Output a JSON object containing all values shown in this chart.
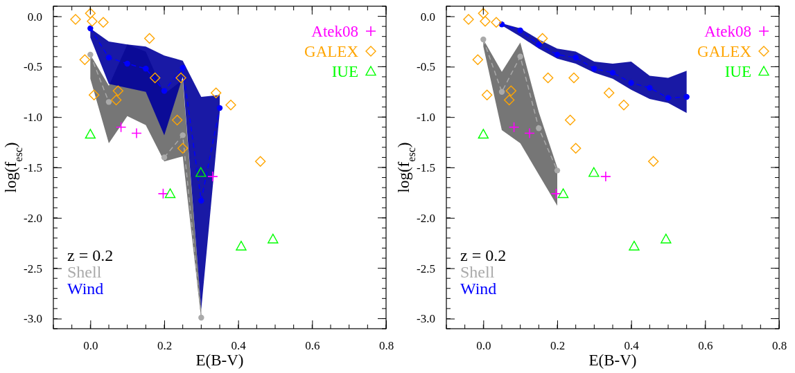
{
  "chart_data": [
    {
      "type": "scatter",
      "xlabel": "E(B-V)",
      "ylabel": "log(f$_{esc}$)",
      "xlim": [
        -0.1,
        0.8
      ],
      "ylim": [
        -3.1,
        0.1
      ],
      "xticks": [
        {
          "value": 0,
          "label": "0.0"
        },
        {
          "value": 0.2,
          "label": "0.2"
        },
        {
          "value": 0.4,
          "label": "0.4"
        },
        {
          "value": 0.6,
          "label": "0.6"
        },
        {
          "value": 0.8,
          "label": "0.8"
        }
      ],
      "yticks": [
        {
          "value": 0,
          "label": "0.0"
        },
        {
          "value": -0.5,
          "label": "-0.5"
        },
        {
          "value": -1,
          "label": "-1.0"
        },
        {
          "value": -1.5,
          "label": "-1.5"
        },
        {
          "value": -2,
          "label": "-2.0"
        },
        {
          "value": -2.5,
          "label": "-2.5"
        },
        {
          "value": -3,
          "label": "-3.0"
        }
      ],
      "legend": "top right",
      "annotations": [
        "z = 0.2"
      ],
      "series": [
        {
          "name": "Shell",
          "type": "line",
          "color": "#aaaaaa",
          "marker": "circle",
          "line_style": "dashed",
          "x": [
            0,
            0.05,
            0.1,
            0.15,
            0.2,
            0.25,
            0.3
          ],
          "values": [
            -0.38,
            -0.85,
            null,
            null,
            -1.4,
            -1.18,
            -2.99
          ],
          "upper": [
            -0.38,
            -0.69,
            -0.28,
            -0.35,
            -0.77,
            -0.63,
            -2.9
          ],
          "lower": [
            -0.62,
            -1.26,
            -0.99,
            -1.08,
            -1.44,
            -1.39,
            -3.0
          ]
        },
        {
          "name": "Wind",
          "type": "line",
          "color": "#0000ff",
          "marker": "circle",
          "line_style": "dashed",
          "x": [
            0,
            0.05,
            0.1,
            0.15,
            0.2,
            0.25,
            0.3,
            0.35
          ],
          "values": [
            -0.12,
            -0.41,
            -0.47,
            -0.52,
            -0.74,
            -0.51,
            -1.83,
            -0.91
          ],
          "upper": [
            -0.12,
            -0.25,
            -0.28,
            -0.3,
            -0.39,
            -0.44,
            -0.8,
            -0.78
          ],
          "lower": [
            -0.21,
            -0.67,
            -0.71,
            -0.75,
            -1.18,
            -0.6,
            -2.91,
            -0.95
          ]
        },
        {
          "name": "Atek08",
          "type": "scatter",
          "color": "#ff00ff",
          "marker": "cross",
          "x": [
            0.083,
            0.125,
            0.331,
            0.197
          ],
          "values": [
            -1.1,
            -1.16,
            -1.59,
            -1.76
          ]
        },
        {
          "name": "GALEX",
          "type": "scatter",
          "color": "#ffa500",
          "marker": "diamond",
          "x": [
            -0.04,
            0.0,
            0.005,
            0.035,
            0.16,
            -0.015,
            0.01,
            0.075,
            0.07,
            0.175,
            0.245,
            0.34,
            0.38,
            0.235,
            0.25,
            0.46
          ],
          "values": [
            -0.03,
            0.03,
            -0.05,
            -0.06,
            -0.22,
            -0.43,
            -0.78,
            -0.74,
            -0.83,
            -0.61,
            -0.61,
            -0.76,
            -0.88,
            -1.03,
            -1.31,
            -1.44
          ]
        },
        {
          "name": "IUE",
          "type": "scatter",
          "color": "#00ff00",
          "marker": "triangle",
          "x": [
            0.0,
            0.299,
            0.216,
            0.408,
            0.494
          ],
          "values": [
            -1.17,
            -1.55,
            -1.76,
            -2.28,
            -2.21
          ]
        }
      ]
    },
    {
      "type": "scatter",
      "xlabel": "E(B-V)",
      "ylabel": "log(f$_{esc}$)",
      "xlim": [
        -0.1,
        0.8
      ],
      "ylim": [
        -3.1,
        0.1
      ],
      "xticks": [
        {
          "value": 0,
          "label": "0.0"
        },
        {
          "value": 0.2,
          "label": "0.2"
        },
        {
          "value": 0.4,
          "label": "0.4"
        },
        {
          "value": 0.6,
          "label": "0.6"
        },
        {
          "value": 0.8,
          "label": "0.8"
        }
      ],
      "yticks": [
        {
          "value": 0,
          "label": "0.0"
        },
        {
          "value": -0.5,
          "label": "-0.5"
        },
        {
          "value": -1,
          "label": "-1.0"
        },
        {
          "value": -1.5,
          "label": "-1.5"
        },
        {
          "value": -2,
          "label": "-2.0"
        },
        {
          "value": -2.5,
          "label": "-2.5"
        },
        {
          "value": -3,
          "label": "-3.0"
        }
      ],
      "legend": "top right",
      "annotations": [
        "z = 0.2"
      ],
      "series": [
        {
          "name": "Shell",
          "type": "line",
          "color": "#aaaaaa",
          "marker": "circle",
          "line_style": "dashed",
          "x": [
            0,
            0.05,
            0.1,
            0.15,
            0.2
          ],
          "values": [
            -0.23,
            -0.75,
            -0.4,
            -1.11,
            -1.53
          ],
          "upper": [
            -0.23,
            -0.55,
            -0.26,
            -0.95,
            -1.5
          ],
          "lower": [
            -0.3,
            -1.13,
            -1.26,
            -1.57,
            -1.88
          ]
        },
        {
          "name": "Wind",
          "type": "line",
          "color": "#0000ff",
          "marker": "circle",
          "line_style": "dashed",
          "x": [
            0.05,
            0.1,
            0.15,
            0.2,
            0.25,
            0.3,
            0.35,
            0.4,
            0.45,
            0.5,
            0.55
          ],
          "values": [
            -0.08,
            -0.14,
            -0.28,
            -0.38,
            -0.41,
            -0.52,
            -0.56,
            -0.66,
            -0.71,
            -0.81,
            -0.8
          ],
          "upper": [
            -0.07,
            -0.12,
            -0.23,
            -0.32,
            -0.35,
            -0.45,
            -0.47,
            -0.45,
            -0.59,
            -0.61,
            -0.54
          ],
          "lower": [
            -0.09,
            -0.2,
            -0.32,
            -0.42,
            -0.47,
            -0.56,
            -0.62,
            -0.73,
            -0.82,
            -0.86,
            -0.96
          ]
        },
        {
          "name": "Atek08",
          "type": "scatter",
          "color": "#ff00ff",
          "marker": "cross",
          "x": [
            0.083,
            0.125,
            0.331,
            0.197
          ],
          "values": [
            -1.1,
            -1.16,
            -1.59,
            -1.76
          ]
        },
        {
          "name": "GALEX",
          "type": "scatter",
          "color": "#ffa500",
          "marker": "diamond",
          "x": [
            -0.04,
            0.0,
            0.005,
            0.035,
            0.16,
            -0.015,
            0.01,
            0.075,
            0.07,
            0.175,
            0.245,
            0.34,
            0.38,
            0.235,
            0.25,
            0.46
          ],
          "values": [
            -0.03,
            0.03,
            -0.05,
            -0.06,
            -0.22,
            -0.43,
            -0.78,
            -0.74,
            -0.83,
            -0.61,
            -0.61,
            -0.76,
            -0.88,
            -1.03,
            -1.31,
            -1.44
          ]
        },
        {
          "name": "IUE",
          "type": "scatter",
          "color": "#00ff00",
          "marker": "triangle",
          "x": [
            0.0,
            0.299,
            0.216,
            0.408,
            0.494
          ],
          "values": [
            -1.17,
            -1.55,
            -1.76,
            -2.28,
            -2.21
          ]
        }
      ]
    }
  ]
}
